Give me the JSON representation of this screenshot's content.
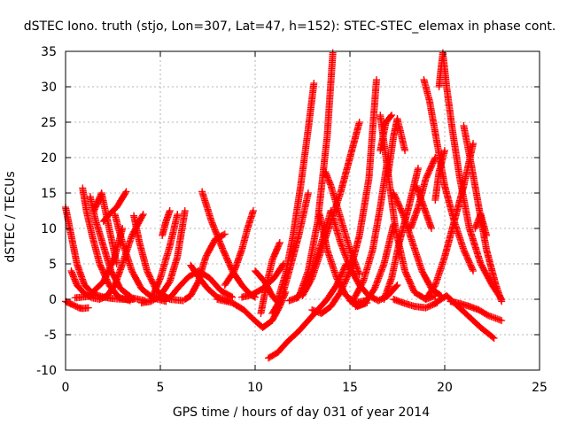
{
  "chart_data": {
    "type": "scatter",
    "title": "dSTEC Iono. truth (stjo, Lon=307, Lat=47, h=152): STEC-STEC_elemax in phase cont.",
    "xlabel": "GPS time / hours of day 031 of year 2014",
    "ylabel": "dSTEC  / TECUs",
    "xlim": [
      0,
      25
    ],
    "ylim": [
      -10,
      35
    ],
    "x_ticks": [
      0,
      5,
      10,
      15,
      20,
      25
    ],
    "y_ticks": [
      -10,
      -5,
      0,
      5,
      10,
      15,
      20,
      25,
      30,
      35
    ],
    "x_tick_labels": [
      "0",
      "5",
      "10",
      "15",
      "20",
      "25"
    ],
    "y_tick_labels": [
      "-10",
      "-5",
      "0",
      "5",
      "10",
      "15",
      "20",
      "25",
      "30",
      "35"
    ],
    "grid": true,
    "marker": "plus",
    "color": "#ff0000",
    "series": [
      {
        "x": [
          0.0,
          0.4,
          0.7,
          0.9,
          1.2
        ],
        "y": [
          -0.3,
          -0.8,
          -1.2,
          -1.3,
          -1.2
        ]
      },
      {
        "x": [
          0.0,
          0.3,
          0.6,
          1.0,
          1.5,
          2.0,
          2.5,
          3.0,
          3.6
        ],
        "y": [
          13.0,
          9.0,
          5.0,
          2.0,
          0.7,
          0.3,
          0.1,
          0.0,
          0.0
        ]
      },
      {
        "x": [
          0.3,
          0.6,
          1.0,
          1.4,
          1.8,
          2.2,
          2.6,
          3.0,
          3.5,
          4.1
        ],
        "y": [
          4.0,
          2.0,
          0.8,
          0.2,
          0.0,
          0.5,
          2.0,
          5.0,
          9.0,
          12.0
        ]
      },
      {
        "x": [
          0.5,
          1.2,
          2.0,
          2.6,
          3.0
        ],
        "y": [
          0.2,
          0.4,
          2.5,
          6.0,
          10.0
        ]
      },
      {
        "x": [
          0.9,
          1.1,
          1.4,
          1.8,
          2.3,
          2.8,
          3.4
        ],
        "y": [
          15.7,
          12.5,
          9.0,
          5.0,
          2.0,
          0.3,
          -0.2
        ]
      },
      {
        "x": [
          1.3,
          1.6,
          2.0,
          2.4,
          2.9,
          3.5,
          4.2
        ],
        "y": [
          14.5,
          11.0,
          7.5,
          4.0,
          1.5,
          0.2,
          -0.2
        ]
      },
      {
        "x": [
          1.5,
          1.9,
          2.3,
          2.7
        ],
        "y": [
          12.5,
          15.0,
          10.0,
          5.0
        ]
      },
      {
        "x": [
          2.0,
          2.3,
          2.7,
          3.2
        ],
        "y": [
          11.0,
          12.0,
          13.0,
          15.2
        ]
      },
      {
        "x": [
          2.6,
          3.0,
          3.5,
          4.0,
          4.6,
          5.3
        ],
        "y": [
          12.0,
          8.0,
          4.0,
          1.5,
          0.2,
          -0.3
        ]
      },
      {
        "x": [
          3.6,
          3.9,
          4.3,
          4.8,
          5.5,
          6.2
        ],
        "y": [
          11.8,
          8.0,
          4.0,
          1.2,
          0.0,
          -0.2
        ]
      },
      {
        "x": [
          4.0,
          4.5,
          5.0,
          5.5,
          5.9,
          6.3
        ],
        "y": [
          -0.5,
          -0.3,
          0.5,
          2.5,
          6.0,
          12.5
        ]
      },
      {
        "x": [
          4.6,
          5.0,
          5.5,
          5.9
        ],
        "y": [
          0.5,
          3.0,
          7.5,
          12.0
        ]
      },
      {
        "x": [
          5.1,
          5.3,
          5.5
        ],
        "y": [
          9.0,
          11.0,
          12.5
        ]
      },
      {
        "x": [
          5.0,
          5.5,
          6.0,
          6.5,
          7.0,
          7.6,
          8.2,
          8.8
        ],
        "y": [
          0.0,
          0.2,
          1.8,
          3.2,
          4.0,
          3.0,
          1.2,
          0.3
        ]
      },
      {
        "x": [
          6.3,
          6.6,
          7.0,
          7.4,
          7.9,
          8.4
        ],
        "y": [
          0.0,
          0.5,
          2.5,
          6.0,
          8.5,
          9.2
        ]
      },
      {
        "x": [
          6.6,
          7.0,
          7.5,
          8.0,
          8.6
        ],
        "y": [
          4.8,
          3.2,
          1.5,
          0.3,
          -0.2
        ]
      },
      {
        "x": [
          7.2,
          7.7,
          8.3,
          8.8,
          9.3,
          9.7,
          10.0
        ],
        "y": [
          15.2,
          11.0,
          7.0,
          4.0,
          2.0,
          0.8,
          0.3
        ]
      },
      {
        "x": [
          8.4,
          8.9,
          9.3,
          9.6,
          9.9
        ],
        "y": [
          2.0,
          4.0,
          7.0,
          10.0,
          12.5
        ]
      },
      {
        "x": [
          8.0,
          8.8,
          9.4,
          9.9,
          10.4,
          10.9,
          11.3,
          11.6
        ],
        "y": [
          0.0,
          -0.5,
          -1.5,
          -2.8,
          -4.0,
          -3.0,
          -1.0,
          1.0
        ]
      },
      {
        "x": [
          9.3,
          9.8,
          10.4,
          11.0,
          11.5
        ],
        "y": [
          0.3,
          0.6,
          1.5,
          3.0,
          5.0
        ]
      },
      {
        "x": [
          10.0,
          10.5,
          10.9,
          11.3
        ],
        "y": [
          4.0,
          2.5,
          0.5,
          -0.8
        ]
      },
      {
        "x": [
          10.3,
          10.6,
          10.9,
          11.3
        ],
        "y": [
          -2.0,
          2.0,
          5.5,
          8.0
        ]
      },
      {
        "x": [
          10.9,
          11.4,
          11.8,
          12.3,
          12.8
        ],
        "y": [
          -2.0,
          0.2,
          4.0,
          9.0,
          15.0
        ]
      },
      {
        "x": [
          11.2,
          11.6,
          12.0,
          12.4,
          12.8,
          13.1
        ],
        "y": [
          0.0,
          3.5,
          9.0,
          16.0,
          24.0,
          30.5
        ]
      },
      {
        "x": [
          10.7,
          11.2,
          11.7,
          12.3,
          12.8,
          13.3,
          13.8,
          14.3,
          14.8
        ],
        "y": [
          -8.3,
          -7.5,
          -6.0,
          -4.5,
          -3.0,
          -1.5,
          0.0,
          2.0,
          5.0
        ]
      },
      {
        "x": [
          11.8,
          12.3,
          12.8,
          13.3,
          13.8,
          14.1
        ],
        "y": [
          -0.2,
          0.3,
          4.0,
          11.0,
          23.0,
          34.8
        ]
      },
      {
        "x": [
          12.2,
          12.6,
          13.0,
          13.5,
          14.0
        ],
        "y": [
          0.2,
          1.5,
          4.0,
          8.0,
          12.5
        ]
      },
      {
        "x": [
          12.5,
          13.0,
          13.5,
          14.0,
          14.5,
          15.0,
          15.5
        ],
        "y": [
          0.5,
          3.0,
          7.0,
          11.0,
          15.0,
          20.0,
          25.0
        ]
      },
      {
        "x": [
          13.4,
          13.8,
          14.3,
          14.8,
          15.3,
          15.8
        ],
        "y": [
          12.0,
          7.0,
          3.0,
          0.5,
          -0.5,
          -0.2
        ]
      },
      {
        "x": [
          13.7,
          14.0,
          14.5,
          15.0,
          15.5
        ],
        "y": [
          18.0,
          16.0,
          11.5,
          7.0,
          3.5
        ]
      },
      {
        "x": [
          13.0,
          13.5,
          14.0,
          14.5,
          15.0,
          15.5,
          16.0,
          16.4
        ],
        "y": [
          -1.5,
          -2.0,
          -1.0,
          1.0,
          4.0,
          9.0,
          17.0,
          31.0
        ]
      },
      {
        "x": [
          14.0,
          14.5,
          15.0,
          15.5,
          16.0,
          16.5,
          17.0,
          17.5
        ],
        "y": [
          12.5,
          8.0,
          4.5,
          2.0,
          0.5,
          -0.2,
          0.5,
          2.0
        ]
      },
      {
        "x": [
          15.2,
          15.7,
          16.2,
          16.6,
          17.0
        ],
        "y": [
          0.0,
          2.5,
          7.0,
          13.0,
          20.0
        ]
      },
      {
        "x": [
          15.3,
          15.8,
          16.3,
          16.8,
          17.3
        ],
        "y": [
          -1.0,
          -0.5,
          1.5,
          5.0,
          10.5
        ]
      },
      {
        "x": [
          15.0,
          15.4,
          15.9
        ],
        "y": [
          -0.2,
          -1.0,
          -0.5
        ]
      },
      {
        "x": [
          16.6,
          16.9,
          17.2
        ],
        "y": [
          21.0,
          25.0,
          26.0
        ]
      },
      {
        "x": [
          16.6,
          17.0,
          17.4,
          17.9,
          18.4,
          19.0,
          19.5
        ],
        "y": [
          26.0,
          18.0,
          10.0,
          4.0,
          1.0,
          0.0,
          0.5
        ]
      },
      {
        "x": [
          17.0,
          17.3,
          17.5,
          17.9
        ],
        "y": [
          17.5,
          23.0,
          25.5,
          21.0
        ]
      },
      {
        "x": [
          16.8,
          17.2,
          17.6,
          18.1,
          18.6
        ],
        "y": [
          0.0,
          3.0,
          8.0,
          13.0,
          18.5
        ]
      },
      {
        "x": [
          17.3,
          17.8,
          18.3,
          18.8,
          19.3,
          19.8
        ],
        "y": [
          15.0,
          12.0,
          8.0,
          4.0,
          1.5,
          0.5
        ]
      },
      {
        "x": [
          18.2,
          18.6,
          19.0,
          19.5
        ],
        "y": [
          10.0,
          13.0,
          17.0,
          20.0
        ]
      },
      {
        "x": [
          18.5,
          18.9,
          19.3
        ],
        "y": [
          16.0,
          13.0,
          10.0
        ]
      },
      {
        "x": [
          17.3,
          17.8,
          18.4,
          19.0,
          19.6
        ],
        "y": [
          0.0,
          -0.5,
          -1.0,
          -1.2,
          -0.5
        ]
      },
      {
        "x": [
          18.9,
          19.2,
          19.6,
          20.0,
          20.5,
          21.0,
          21.5
        ],
        "y": [
          31.0,
          28.0,
          22.0,
          16.0,
          11.0,
          7.0,
          4.0
        ]
      },
      {
        "x": [
          19.0,
          19.5,
          20.0,
          20.5,
          21.0,
          21.5
        ],
        "y": [
          0.0,
          2.0,
          6.0,
          11.0,
          16.0,
          22.0
        ]
      },
      {
        "x": [
          19.5,
          19.7,
          20.0
        ],
        "y": [
          14.0,
          18.0,
          21.0
        ]
      },
      {
        "x": [
          19.7,
          19.9,
          20.1,
          20.4,
          20.8,
          21.3,
          21.9,
          22.5,
          23.0
        ],
        "y": [
          30.0,
          34.8,
          30.0,
          24.0,
          17.0,
          10.0,
          5.0,
          2.0,
          0.0
        ]
      },
      {
        "x": [
          21.0,
          21.4,
          21.8,
          22.2,
          22.7,
          23.0
        ],
        "y": [
          24.5,
          19.0,
          13.0,
          7.0,
          2.0,
          -0.3
        ]
      },
      {
        "x": [
          21.6,
          21.9,
          22.2
        ],
        "y": [
          10.0,
          12.0,
          9.0
        ]
      },
      {
        "x": [
          19.5,
          20.1,
          20.7,
          21.3,
          21.9,
          22.6
        ],
        "y": [
          -0.5,
          0.5,
          -1.0,
          -2.5,
          -4.0,
          -5.5
        ]
      },
      {
        "x": [
          20.3,
          20.8,
          21.3,
          21.8,
          22.3,
          23.0
        ],
        "y": [
          -0.3,
          -0.6,
          -1.0,
          -1.5,
          -2.3,
          -3.0
        ]
      }
    ]
  }
}
